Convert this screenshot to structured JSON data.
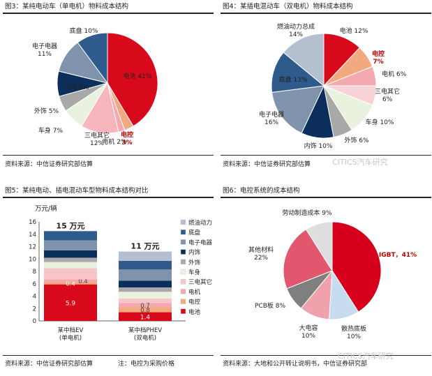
{
  "watermark": "CITICS汽车研究",
  "watermark2": "CITICS汽车研究",
  "chart_data": [
    {
      "type": "pie",
      "title": "图3：某纯电动车（单电机）物料成本结构",
      "source": "资料来源：中信证券研究部估算",
      "slices": [
        {
          "label": "电池",
          "value": 41,
          "display": "电池 41%",
          "color": "#d9091c"
        },
        {
          "label": "电控",
          "value": 3,
          "display": "电控 3%",
          "color": "#f3a97f"
        },
        {
          "label": "电机",
          "value": 2,
          "display": "电机 2%",
          "color": "#f4a8b0"
        },
        {
          "label": "三电其它",
          "value": 12,
          "display": "三电其它 12%",
          "color": "#f7b5bd"
        },
        {
          "label": "车身",
          "value": 7,
          "display": "车身 7%",
          "color": "#e9f1df"
        },
        {
          "label": "外饰",
          "value": 5,
          "display": "外饰 5%",
          "color": "#a9a9a9"
        },
        {
          "label": "内饰",
          "value": 8,
          "display": "内饰 8%",
          "color": "#0b2e5c"
        },
        {
          "label": "电子电器",
          "value": 11,
          "display": "电子电器 11%",
          "color": "#8093ad"
        },
        {
          "label": "底盘",
          "value": 10,
          "display": "底盘 10%",
          "color": "#2e5a8c"
        }
      ]
    },
    {
      "type": "pie",
      "title": "图4：某插电混动车（双电机）物料成本结构",
      "source": "资料来源：中信证券研究部估算",
      "slices": [
        {
          "label": "电池",
          "value": 12,
          "display": "电池 12%",
          "color": "#d9091c"
        },
        {
          "label": "电控",
          "value": 7,
          "display": "电控 7%",
          "color": "#f3a97f"
        },
        {
          "label": "电机",
          "value": 6,
          "display": "电机 6%",
          "color": "#f4a8b0"
        },
        {
          "label": "三电其它",
          "value": 6,
          "display": "三电其它 6%",
          "color": "#f7d3d7"
        },
        {
          "label": "车身",
          "value": 10,
          "display": "车身 10%",
          "color": "#e9f1df"
        },
        {
          "label": "外饰",
          "value": 6,
          "display": "外饰 6%",
          "color": "#a9a9a9"
        },
        {
          "label": "内饰",
          "value": 10,
          "display": "内饰 10%",
          "color": "#0b2e5c"
        },
        {
          "label": "电子电器",
          "value": 16,
          "display": "电子电器 16%",
          "color": "#8093ad"
        },
        {
          "label": "底盘",
          "value": 13,
          "display": "底盘 13%",
          "color": "#2e5a8c"
        },
        {
          "label": "燃油动力总成",
          "value": 14,
          "display": "燃油动力总成 14%",
          "color": "#b4c0d0"
        }
      ]
    },
    {
      "type": "bar",
      "stacked": true,
      "title": "图5：某纯电动、插电混动车型物料成本结构对比",
      "source": "资料来源：中信证券研究部估算",
      "note": "注：电控为采购价格",
      "ylabel": "万元/辆",
      "ylim": [
        0,
        16
      ],
      "yticks": [
        0,
        2,
        4,
        6,
        8,
        10,
        12,
        14,
        16
      ],
      "categories": [
        "某中档EV\n(单电机)",
        "某中档PHEV\n(双电机)"
      ],
      "totals": [
        "15 万元",
        "11 万元"
      ],
      "legend": [
        "燃油动力总成",
        "底盘",
        "电子电器",
        "内饰",
        "外饰",
        "车身",
        "三电其它",
        "电机",
        "电控",
        "电池"
      ],
      "legend_display": [
        "燃油动力",
        "底盘",
        "电子电器",
        "内饰",
        "外饰",
        "车身",
        "三电其它",
        "电机",
        "电控",
        "电池"
      ],
      "series": [
        {
          "name": "电池",
          "color": "#d9091c",
          "values": [
            5.9,
            1.4
          ],
          "labels": [
            "5.9",
            "1.4"
          ]
        },
        {
          "name": "电控",
          "color": "#f3a97f",
          "values": [
            0.4,
            0.8
          ],
          "labels": [
            "0.4",
            "0.8"
          ]
        },
        {
          "name": "电机",
          "color": "#f4a8b0",
          "values": [
            0.4,
            0.7
          ],
          "labels": [
            "0.4",
            "0.7"
          ]
        },
        {
          "name": "三电其它",
          "color": "#f7c4ca",
          "values": [
            1.8,
            0.7
          ],
          "labels": [
            "",
            ""
          ]
        },
        {
          "name": "车身",
          "color": "#e9f1df",
          "values": [
            1.0,
            1.1
          ],
          "labels": [
            "",
            ""
          ]
        },
        {
          "name": "外饰",
          "color": "#a9a9a9",
          "values": [
            0.7,
            0.7
          ],
          "labels": [
            "",
            ""
          ]
        },
        {
          "name": "内饰",
          "color": "#0b2e5c",
          "values": [
            1.2,
            1.1
          ],
          "labels": [
            "",
            ""
          ]
        },
        {
          "name": "电子电器",
          "color": "#8093ad",
          "values": [
            1.6,
            1.8
          ],
          "labels": [
            "",
            ""
          ]
        },
        {
          "name": "底盘",
          "color": "#2e5a8c",
          "values": [
            1.5,
            1.4
          ],
          "labels": [
            "",
            ""
          ]
        },
        {
          "name": "燃油动力总成",
          "color": "#b4c0d0",
          "values": [
            0,
            1.5
          ],
          "labels": [
            "",
            ""
          ]
        }
      ]
    },
    {
      "type": "pie",
      "title": "图6：电控系统的成本结构",
      "source": "资料来源：大地和公开转让说明书，中信证券研究部",
      "slices": [
        {
          "label": "IGBT",
          "value": 41,
          "display": "IGBT，41%",
          "color": "#d6001c"
        },
        {
          "label": "散热底板",
          "value": 10,
          "display": "散热底板 10%",
          "color": "#c8dcf0"
        },
        {
          "label": "大电容",
          "value": 10,
          "display": "大电容 10%",
          "color": "#f0a2ac"
        },
        {
          "label": "PCB板",
          "value": 8,
          "display": "PCB板 8%",
          "color": "#7f7f7f"
        },
        {
          "label": "其他材料",
          "value": 22,
          "display": "其他材料 22%",
          "color": "#e2566e"
        },
        {
          "label": "劳动制造成本",
          "value": 9,
          "display": "劳动制造成本 9%",
          "color": "#dedede"
        }
      ]
    }
  ]
}
